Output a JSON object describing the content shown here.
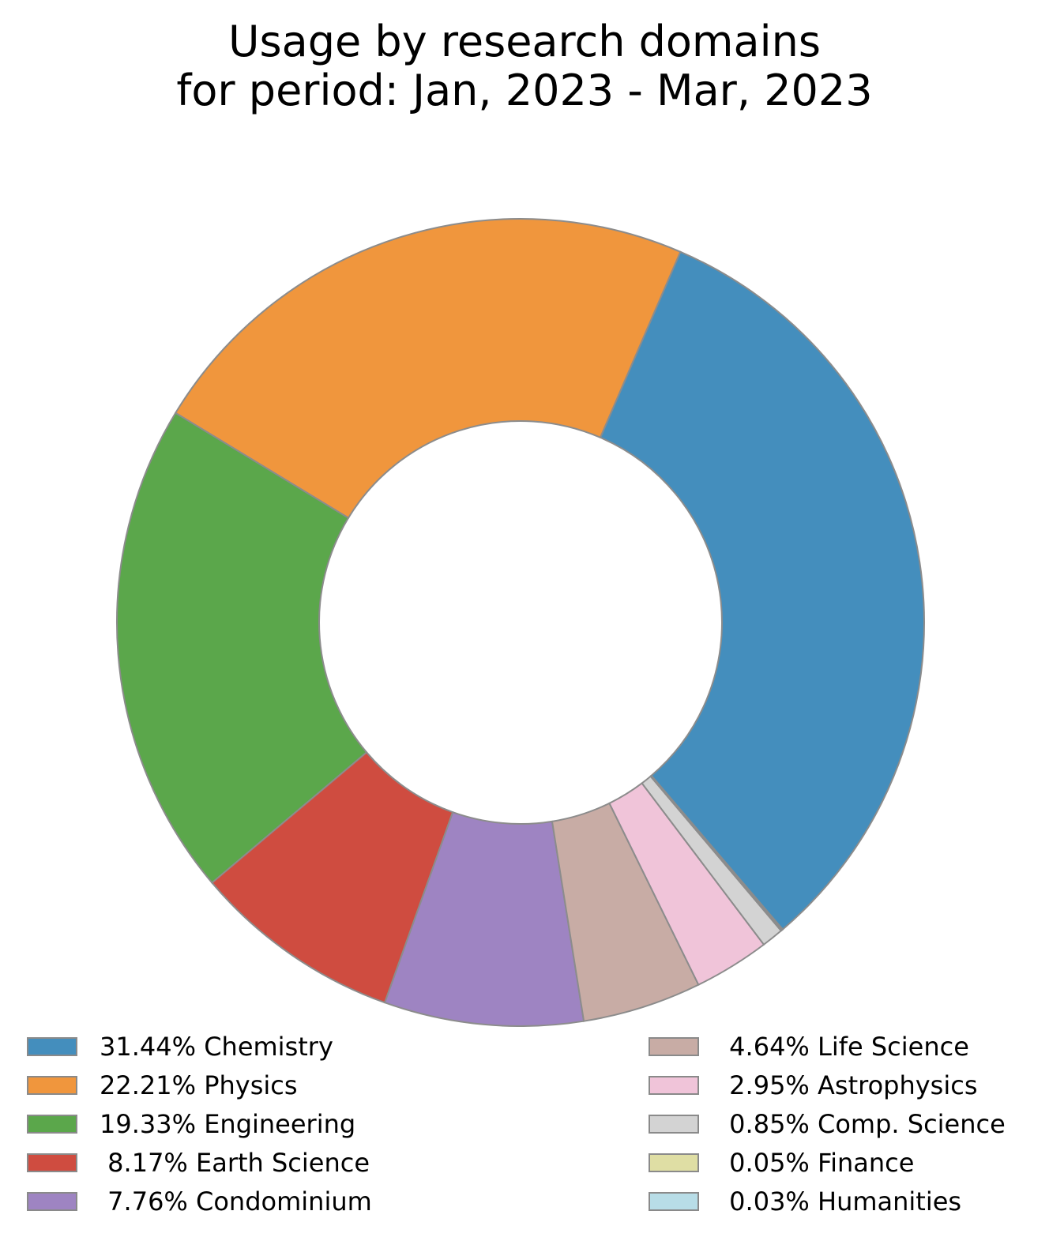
{
  "chart_data": {
    "type": "pie",
    "style": "donut",
    "title": "Usage by research domains",
    "subtitle": "for period: Jan, 2023 - Mar, 2023",
    "legend_position": "bottom",
    "slices": [
      {
        "label": "Chemistry",
        "value": 31.44,
        "legend_text": "31.44% Chemistry",
        "color": "#448ebd"
      },
      {
        "label": "Physics",
        "value": 22.21,
        "legend_text": "22.21% Physics",
        "color": "#f0963d"
      },
      {
        "label": "Engineering",
        "value": 19.33,
        "legend_text": "19.33% Engineering",
        "color": "#5ba74b"
      },
      {
        "label": "Earth Science",
        "value": 8.17,
        "legend_text": " 8.17% Earth Science",
        "color": "#cf4c40"
      },
      {
        "label": "Condominium",
        "value": 7.76,
        "legend_text": " 7.76% Condominium",
        "color": "#9e84c2"
      },
      {
        "label": "Life Science",
        "value": 4.64,
        "legend_text": " 4.64% Life Science",
        "color": "#c8aca5"
      },
      {
        "label": "Astrophysics",
        "value": 2.95,
        "legend_text": " 2.95% Astrophysics",
        "color": "#f0c4d9"
      },
      {
        "label": "Comp. Science",
        "value": 0.85,
        "legend_text": " 0.85% Comp. Science",
        "color": "#d3d3d3"
      },
      {
        "label": "Finance",
        "value": 0.05,
        "legend_text": " 0.05% Finance",
        "color": "#dfdea4"
      },
      {
        "label": "Humanities",
        "value": 0.03,
        "legend_text": " 0.03% Humanities",
        "color": "#b8dde7"
      }
    ]
  }
}
